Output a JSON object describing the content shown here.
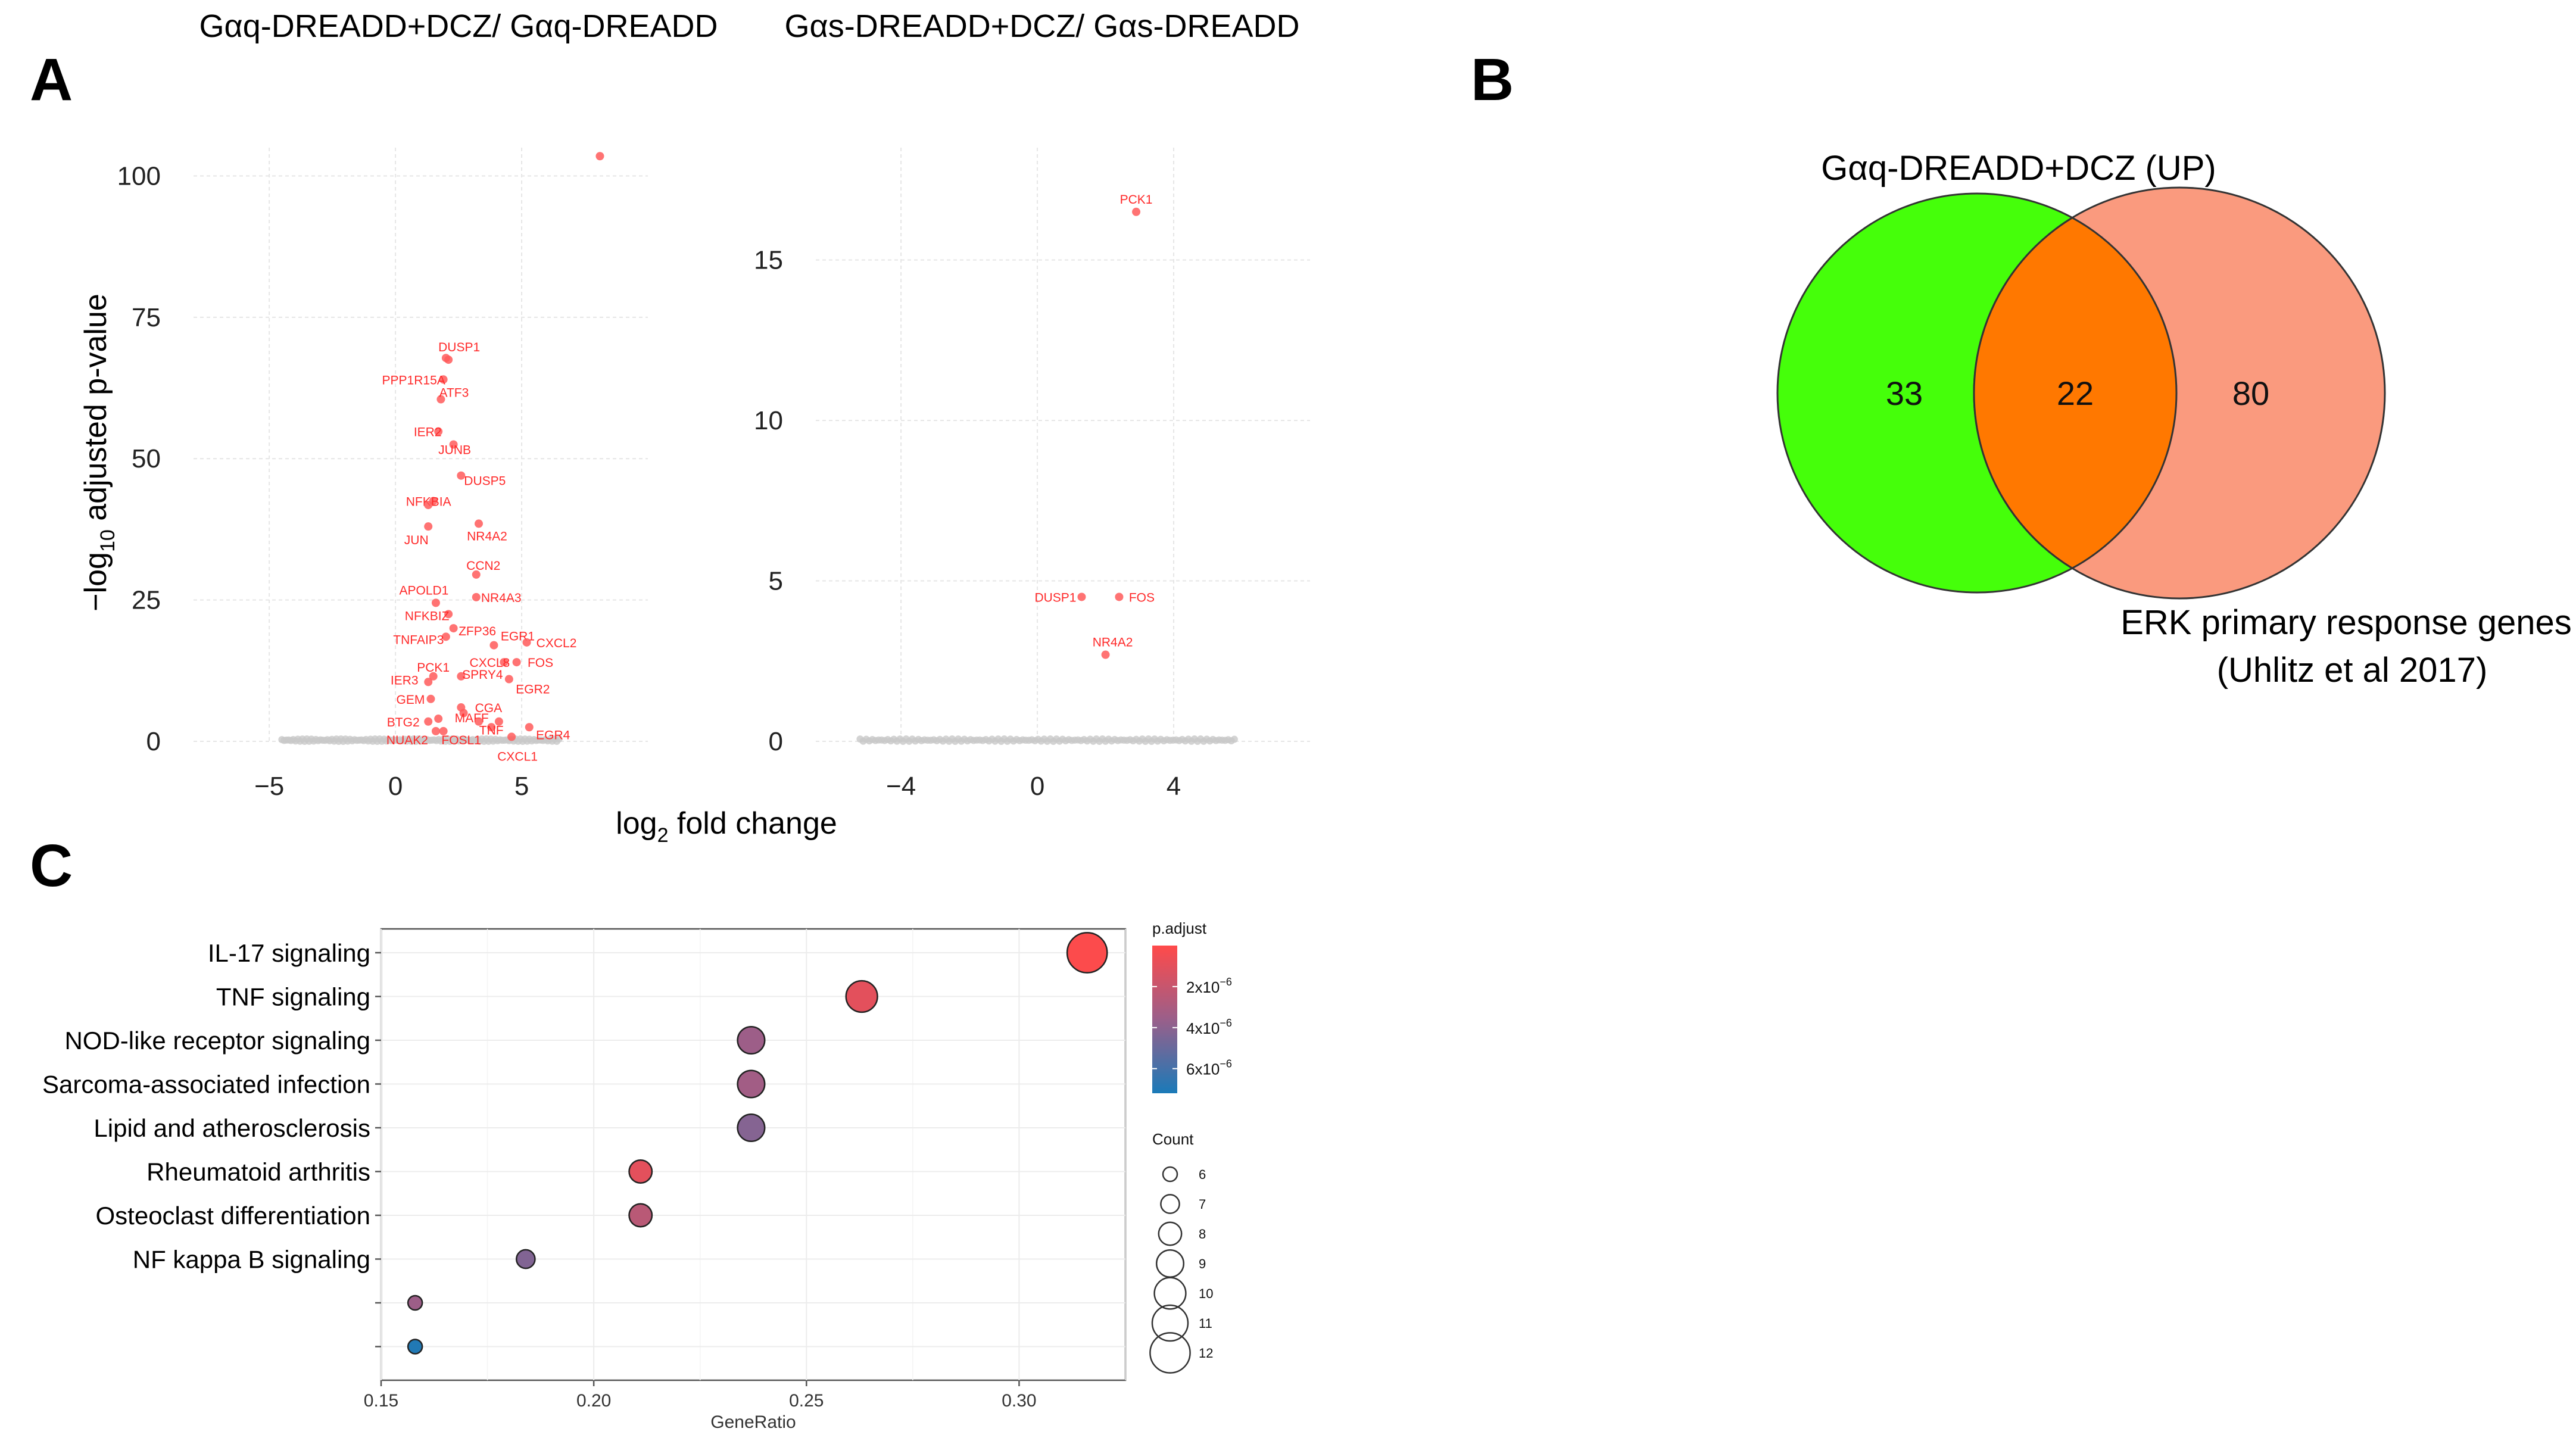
{
  "panels": {
    "A": {
      "letter": "A",
      "left_title": "Gαq-DREADD+DCZ/ Gαq-DREADD",
      "right_title": "Gαs-DREADD+DCZ/ Gαs-DREADD",
      "ylabel_main": "−log",
      "ylabel_sub": "10",
      "ylabel_rest": " adjusted p-value",
      "xlabel_main": "log",
      "xlabel_sub": "2",
      "xlabel_rest": " fold change"
    },
    "B": {
      "letter": "B"
    },
    "C": {
      "letter": "C"
    }
  },
  "chart_data": [
    {
      "type": "scatter",
      "id": "volcano-gq",
      "title": "Gαq-DREADD+DCZ/ Gαq-DREADD",
      "xlabel": "log2 fold change",
      "ylabel": "−log10 adjusted p-value",
      "xlim": [
        -8,
        10
      ],
      "ylim": [
        0,
        105
      ],
      "xticks": [
        -5,
        0,
        5
      ],
      "xtick_labels": [
        "−5",
        "0",
        "5"
      ],
      "yticks": [
        0,
        25,
        50,
        75,
        100
      ],
      "color_sig": "#ff5a5a",
      "color_ns": "#c8c8c8",
      "points": [
        {
          "x": 8.1,
          "y": 103.5,
          "label": ""
        },
        {
          "x": 2.1,
          "y": 67.5,
          "label": "DUSP1"
        },
        {
          "x": 2.0,
          "y": 67.8,
          "label": ""
        },
        {
          "x": 1.9,
          "y": 64.0,
          "label": "PPP1R15A"
        },
        {
          "x": 1.8,
          "y": 60.5,
          "label": "ATF3"
        },
        {
          "x": 1.7,
          "y": 54.8,
          "label": "IER2"
        },
        {
          "x": 2.3,
          "y": 52.5,
          "label": "JUNB"
        },
        {
          "x": 2.6,
          "y": 47.0,
          "label": "DUSP5"
        },
        {
          "x": 1.5,
          "y": 42.5,
          "label": "NFKBIA"
        },
        {
          "x": 1.3,
          "y": 41.8,
          "label": ""
        },
        {
          "x": 1.3,
          "y": 38.0,
          "label": "JUN"
        },
        {
          "x": 3.3,
          "y": 38.5,
          "label": "NR4A2"
        },
        {
          "x": 3.2,
          "y": 29.5,
          "label": "CCN2"
        },
        {
          "x": 3.2,
          "y": 25.5,
          "label": "NR4A3"
        },
        {
          "x": 1.6,
          "y": 24.5,
          "label": "APOLD1"
        },
        {
          "x": 2.1,
          "y": 22.5,
          "label": "NFKBIZ"
        },
        {
          "x": 2.3,
          "y": 20.0,
          "label": "ZFP36"
        },
        {
          "x": 3.9,
          "y": 17.0,
          "label": "EGR1"
        },
        {
          "x": 5.2,
          "y": 17.5,
          "label": "CXCL2"
        },
        {
          "x": 2.0,
          "y": 18.5,
          "label": "TNFAIP3"
        },
        {
          "x": 4.3,
          "y": 14.0,
          "label": "CXCL8"
        },
        {
          "x": 4.8,
          "y": 14.0,
          "label": "FOS"
        },
        {
          "x": 1.5,
          "y": 11.5,
          "label": "PCK1"
        },
        {
          "x": 1.3,
          "y": 10.5,
          "label": "IER3"
        },
        {
          "x": 4.5,
          "y": 11.0,
          "label": "EGR2"
        },
        {
          "x": 2.6,
          "y": 11.5,
          "label": "SPRY4"
        },
        {
          "x": 1.4,
          "y": 7.5,
          "label": "GEM"
        },
        {
          "x": 2.6,
          "y": 6.0,
          "label": "CGA"
        },
        {
          "x": 2.7,
          "y": 5.0,
          "label": ""
        },
        {
          "x": 1.7,
          "y": 4.0,
          "label": "MAFF"
        },
        {
          "x": 1.3,
          "y": 3.5,
          "label": "BTG2"
        },
        {
          "x": 3.3,
          "y": 3.5,
          "label": ""
        },
        {
          "x": 4.1,
          "y": 3.5,
          "label": ""
        },
        {
          "x": 5.3,
          "y": 2.5,
          "label": "EGR4"
        },
        {
          "x": 1.6,
          "y": 1.8,
          "label": "NUAK2"
        },
        {
          "x": 1.9,
          "y": 1.8,
          "label": "FOSL1"
        },
        {
          "x": 3.8,
          "y": 2.5,
          "label": "TNF"
        },
        {
          "x": 4.6,
          "y": 0.8,
          "label": "CXCL1"
        }
      ]
    },
    {
      "type": "scatter",
      "id": "volcano-gs",
      "title": "Gαs-DREADD+DCZ/ Gαs-DREADD",
      "xlabel": "log2 fold change",
      "ylabel": "−log10 adjusted p-value",
      "xlim": [
        -6.5,
        8
      ],
      "ylim": [
        0,
        18.5
      ],
      "xticks": [
        -4,
        0,
        4
      ],
      "xtick_labels": [
        "−4",
        "0",
        "4"
      ],
      "yticks": [
        0,
        5,
        10,
        15
      ],
      "color_sig": "#ff5a5a",
      "color_ns": "#c8c8c8",
      "points": [
        {
          "x": 2.9,
          "y": 16.5,
          "label": "PCK1"
        },
        {
          "x": 1.3,
          "y": 4.5,
          "label": "DUSP1"
        },
        {
          "x": 2.4,
          "y": 4.5,
          "label": "FOS"
        },
        {
          "x": 2.0,
          "y": 2.7,
          "label": "NR4A2"
        }
      ]
    },
    {
      "type": "venn",
      "id": "venn",
      "sets": [
        "Gαq-DREADD+DCZ (UP)",
        "ERK primary response genes",
        "(Uhlitz et al 2017)"
      ],
      "only_a": "33",
      "both": "22",
      "only_b": "80",
      "colors": {
        "a": "#45ff0a",
        "b": "#fa9a7e",
        "overlap": "#ff7800"
      }
    },
    {
      "type": "scatter",
      "id": "kegg-dotplot",
      "xlabel": "GeneRatio",
      "xlim": [
        0.15,
        0.325
      ],
      "xticks": [
        0.15,
        0.2,
        0.25,
        0.3
      ],
      "xtick_labels": [
        "0.15",
        "0.20",
        "0.25",
        "0.30"
      ],
      "categories": [
        "IL-17 signaling",
        "TNF signaling",
        "NOD-like receptor signaling",
        "Sarcoma-associated infection",
        "Lipid and atherosclerosis",
        "Rheumatoid arthritis",
        "Osteoclast differentiation",
        "NF kappa B signaling",
        "",
        ""
      ],
      "gene_ratio": [
        0.316,
        0.263,
        0.237,
        0.237,
        0.237,
        0.211,
        0.211,
        0.184,
        0.158,
        0.158
      ],
      "count": [
        12,
        10,
        9,
        9,
        9,
        8,
        8,
        7,
        6,
        6
      ],
      "p_adjust": [
        1e-07,
        1e-06,
        3.5e-06,
        3.3e-06,
        4.2e-06,
        1e-06,
        2.5e-06,
        4.3e-06,
        3.5e-06,
        7e-06
      ],
      "legend_color_title": "p.adjust",
      "legend_color_labels": [
        "2x10",
        "4x10",
        "6x10"
      ],
      "legend_color_exp": "−6",
      "legend_color_values": [
        2e-06,
        4e-06,
        6e-06
      ],
      "legend_color_range": [
        0,
        7.2e-06
      ],
      "legend_size_title": "Count",
      "legend_size_values": [
        "6",
        "7",
        "8",
        "9",
        "10",
        "11",
        "12"
      ],
      "color_low": "#ff4a4a",
      "color_mid": "#9a5f8a",
      "color_high": "#1a7ab8"
    }
  ]
}
